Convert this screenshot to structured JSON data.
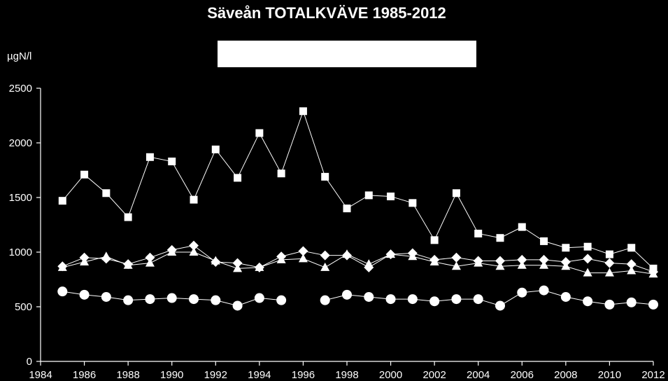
{
  "chart_data": {
    "type": "line",
    "title": "Säveån TOTALKVÄVE 1985-2012",
    "ylabel": "µgN/l",
    "xlabel": "",
    "xlim": [
      1984,
      2012
    ],
    "ylim": [
      0,
      2500
    ],
    "xticks": [
      1984,
      1986,
      1988,
      1990,
      1992,
      1994,
      1996,
      1998,
      2000,
      2002,
      2004,
      2006,
      2008,
      2010,
      2012
    ],
    "yticks": [
      0,
      500,
      1000,
      1500,
      2000,
      2500
    ],
    "legend": "white box at top, no visible text",
    "grid": false,
    "colors": {
      "background": "#000000",
      "foreground": "#ffffff"
    },
    "series": [
      {
        "marker": "square",
        "x": [
          1985,
          1986,
          1987,
          1988,
          1989,
          1990,
          1991,
          1992,
          1993,
          1994,
          1995,
          1996,
          1997,
          1998,
          1999,
          2000,
          2001,
          2002,
          2003,
          2004,
          2005,
          2006,
          2007,
          2008,
          2009,
          2010,
          2011,
          2012
        ],
        "values": [
          1470,
          1710,
          1540,
          1320,
          1870,
          1830,
          1480,
          1940,
          1680,
          2090,
          1720,
          2290,
          1690,
          1400,
          1520,
          1510,
          1450,
          1110,
          1540,
          1170,
          1130,
          1230,
          1100,
          1040,
          1050,
          980,
          1040,
          850
        ]
      },
      {
        "marker": "diamond",
        "x": [
          1985,
          1986,
          1987,
          1988,
          1989,
          1990,
          1991,
          1992,
          1993,
          1994,
          1995,
          1996,
          1997,
          1998,
          1999,
          2000,
          2001,
          2002,
          2003,
          2004,
          2005,
          2006,
          2007,
          2008,
          2009,
          2010,
          2011,
          2012
        ],
        "values": [
          870,
          950,
          940,
          890,
          950,
          1020,
          1060,
          910,
          900,
          860,
          960,
          1010,
          970,
          970,
          860,
          980,
          990,
          930,
          950,
          920,
          920,
          930,
          930,
          910,
          940,
          900,
          890,
          820
        ]
      },
      {
        "marker": "triangle",
        "x": [
          1985,
          1986,
          1987,
          1988,
          1989,
          1990,
          1991,
          1992,
          1993,
          1994,
          1995,
          1996,
          1997,
          1998,
          1999,
          2000,
          2001,
          2002,
          2003,
          2004,
          2005,
          2006,
          2007,
          2008,
          2009,
          2010,
          2011,
          2012
        ],
        "values": [
          860,
          910,
          960,
          880,
          900,
          1000,
          1000,
          920,
          850,
          860,
          930,
          940,
          860,
          980,
          890,
          980,
          960,
          910,
          870,
          900,
          870,
          880,
          880,
          870,
          810,
          810,
          830,
          800
        ]
      },
      {
        "marker": "circle",
        "x": [
          1985,
          1986,
          1987,
          1988,
          1989,
          1990,
          1991,
          1992,
          1993,
          1994,
          1995,
          null,
          1997,
          1998,
          1999,
          2000,
          2001,
          2002,
          2003,
          2004,
          2005,
          2006,
          2007,
          2008,
          2009,
          2010,
          2011,
          2012
        ],
        "values": [
          640,
          610,
          590,
          560,
          570,
          580,
          570,
          560,
          510,
          580,
          560,
          null,
          560,
          610,
          590,
          570,
          570,
          550,
          570,
          570,
          510,
          630,
          650,
          590,
          550,
          520,
          540,
          520
        ]
      }
    ]
  }
}
